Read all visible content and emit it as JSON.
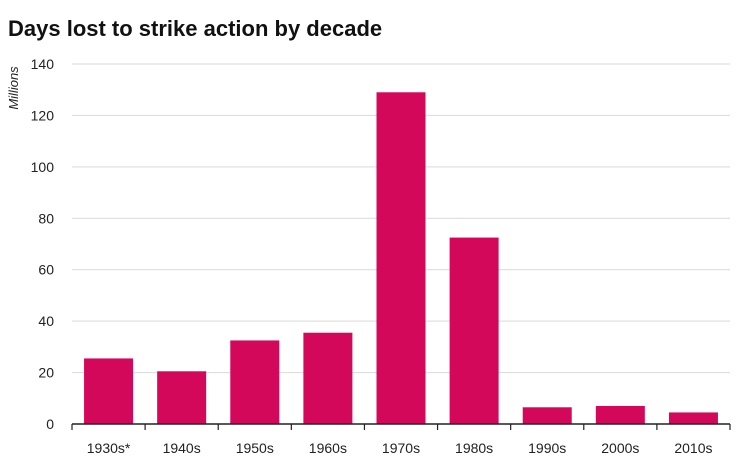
{
  "chart_data": {
    "type": "bar",
    "title": "Days lost to strike action by decade",
    "xlabel": "",
    "ylabel": "Millions",
    "categories": [
      "1930s*",
      "1940s",
      "1950s",
      "1960s",
      "1970s",
      "1980s",
      "1990s",
      "2000s",
      "2010s"
    ],
    "values": [
      25.5,
      20.5,
      32.5,
      35.5,
      129,
      72.5,
      6.5,
      7,
      4.5
    ],
    "ylim": [
      0,
      140
    ],
    "yticks": [
      0,
      20,
      40,
      60,
      80,
      100,
      120,
      140
    ],
    "grid": true,
    "legend": "none",
    "bar_color": "#d4085a",
    "grid_color": "#d9d9d9",
    "axis_color": "#222222"
  }
}
